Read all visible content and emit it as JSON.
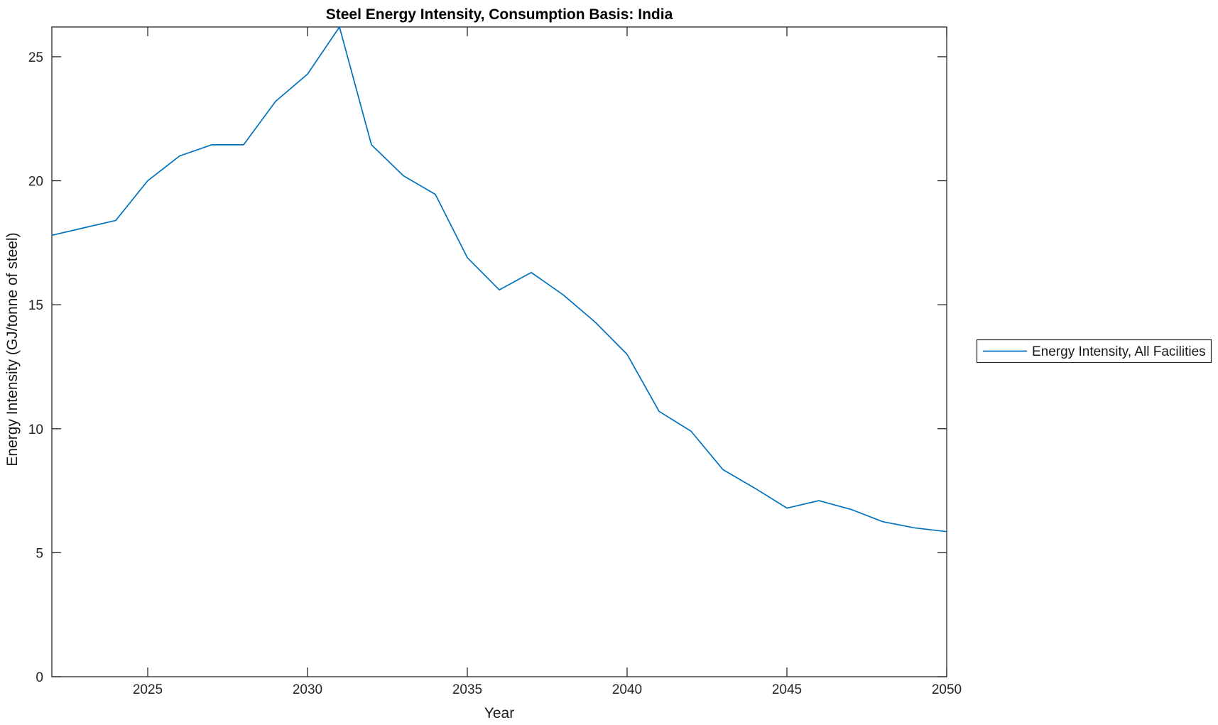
{
  "figure": {
    "background": "#ffffff"
  },
  "colors": {
    "line": "#0072BD",
    "axis": "#262626",
    "title": "#000000",
    "background": "#ffffff"
  },
  "chart_data": {
    "type": "line",
    "title": "Steel Energy Intensity, Consumption Basis: India",
    "xlabel": "Year",
    "ylabel": "Energy Intensity (GJ/tonne of steel)",
    "legend_position": "right-outside-center",
    "grid": false,
    "xlim": [
      2022,
      2050
    ],
    "ylim": [
      0,
      26.2
    ],
    "x_ticks": [
      2025,
      2030,
      2035,
      2040,
      2045,
      2050
    ],
    "x_tick_labels": [
      "2025",
      "2030",
      "2035",
      "2040",
      "2045",
      "2050"
    ],
    "y_ticks": [
      0,
      5,
      10,
      15,
      20,
      25
    ],
    "y_tick_labels": [
      "0",
      "5",
      "10",
      "15",
      "20",
      "25"
    ],
    "series": [
      {
        "name": "Energy Intensity, All Facilities",
        "color": "#0072BD",
        "x": [
          2022,
          2023,
          2024,
          2025,
          2026,
          2027,
          2028,
          2029,
          2030,
          2031,
          2032,
          2033,
          2034,
          2035,
          2036,
          2037,
          2038,
          2039,
          2040,
          2041,
          2042,
          2043,
          2044,
          2045,
          2046,
          2047,
          2048,
          2049,
          2050
        ],
        "y": [
          17.8,
          18.1,
          18.4,
          20.0,
          21.0,
          21.45,
          21.45,
          23.2,
          24.3,
          26.2,
          21.45,
          20.2,
          19.45,
          16.9,
          15.6,
          16.3,
          15.4,
          14.3,
          13.0,
          10.7,
          9.9,
          8.35,
          7.6,
          6.8,
          7.1,
          6.75,
          6.25,
          6.0,
          5.85
        ]
      }
    ]
  }
}
